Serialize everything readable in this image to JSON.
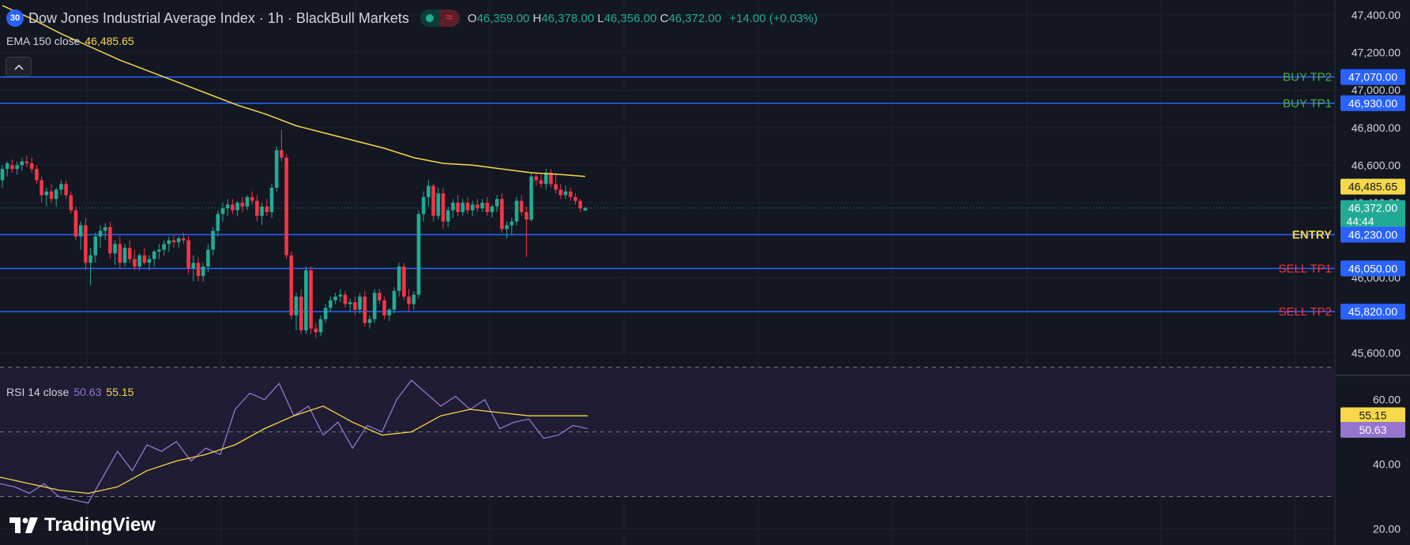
{
  "header": {
    "badge": "30",
    "title": "Dow Jones Industrial Average Index · 1h · BlackBull Markets",
    "status_wave_icon": "≈",
    "ohlc": [
      {
        "label": "O",
        "value": "46,359.00"
      },
      {
        "label": "H",
        "value": "46,378.00"
      },
      {
        "label": "L",
        "value": "46,356.00"
      },
      {
        "label": "C",
        "value": "46,372.00"
      }
    ],
    "change": "+14.00 (+0.03%)"
  },
  "ema_legend": {
    "name": "EMA 150 close",
    "value": "46,485.65"
  },
  "collapse_icon": "chevron-up-icon",
  "rsi_legend": {
    "name": "RSI 14 close",
    "value1": "50.63",
    "value2": "55.15"
  },
  "logo": {
    "text": "TradingView"
  },
  "colors": {
    "background": "#131722",
    "grid": "#1e222d",
    "up": "#22ab94",
    "down": "#f23645",
    "ema": "#f7d84b",
    "level_line": "#2962ff",
    "buy": "#4caf50",
    "sell": "#f23645",
    "entry": "#f7d84b",
    "rsi": "#9575cd",
    "rsi_ma": "#f7d84b",
    "rsi_band": "#1f1c33"
  },
  "chart_data": [
    {
      "type": "candlestick",
      "interval": "1h",
      "ylim": [
        45480,
        47480
      ],
      "y_ticks": [
        {
          "value": 47400,
          "label": "47,400.00"
        },
        {
          "value": 47200,
          "label": "47,200.00"
        },
        {
          "value": 47000,
          "label": "47,000.00"
        },
        {
          "value": 46800,
          "label": "46,800.00"
        },
        {
          "value": 46600,
          "label": "46,600.00"
        },
        {
          "value": 46400,
          "label": "46,400.00"
        },
        {
          "value": 46000,
          "label": "46,000.00"
        },
        {
          "value": 45600,
          "label": "45,600.00"
        }
      ],
      "levels": [
        {
          "name": "BUY TP2",
          "value": 47070,
          "price_label": "47,070.00",
          "kind": "buy"
        },
        {
          "name": "BUY TP1",
          "value": 46930,
          "price_label": "46,930.00",
          "kind": "buy"
        },
        {
          "name": "ENTRY",
          "value": 46230,
          "price_label": "46,230.00",
          "kind": "entry"
        },
        {
          "name": "SELL TP1",
          "value": 46050,
          "price_label": "46,050.00",
          "kind": "sell"
        },
        {
          "name": "SELL TP2",
          "value": 45820,
          "price_label": "45,820.00",
          "kind": "sell"
        }
      ],
      "ema_tag": {
        "value": 46485.65,
        "label": "46,485.65"
      },
      "last_price": {
        "value": 46372,
        "label": "46,372.00",
        "countdown": "44:44"
      },
      "candles": [
        [
          46520,
          46600,
          46480,
          46580
        ],
        [
          46580,
          46620,
          46540,
          46610
        ],
        [
          46600,
          46630,
          46560,
          46580
        ],
        [
          46580,
          46620,
          46550,
          46600
        ],
        [
          46600,
          46640,
          46570,
          46620
        ],
        [
          46620,
          46650,
          46590,
          46610
        ],
        [
          46610,
          46640,
          46560,
          46580
        ],
        [
          46580,
          46600,
          46500,
          46520
        ],
        [
          46520,
          46540,
          46400,
          46440
        ],
        [
          46440,
          46480,
          46380,
          46460
        ],
        [
          46460,
          46500,
          46400,
          46420
        ],
        [
          46420,
          46480,
          46380,
          46470
        ],
        [
          46470,
          46520,
          46440,
          46500
        ],
        [
          46500,
          46520,
          46420,
          46440
        ],
        [
          46440,
          46460,
          46340,
          46360
        ],
        [
          46360,
          46380,
          46200,
          46220
        ],
        [
          46220,
          46300,
          46150,
          46280
        ],
        [
          46280,
          46320,
          46040,
          46080
        ],
        [
          46080,
          46160,
          45960,
          46120
        ],
        [
          46120,
          46240,
          46080,
          46220
        ],
        [
          46220,
          46280,
          46160,
          46250
        ],
        [
          46250,
          46290,
          46200,
          46270
        ],
        [
          46270,
          46300,
          46100,
          46130
        ],
        [
          46130,
          46200,
          46070,
          46180
        ],
        [
          46180,
          46220,
          46050,
          46080
        ],
        [
          46080,
          46180,
          46060,
          46160
        ],
        [
          46160,
          46200,
          46080,
          46100
        ],
        [
          46100,
          46150,
          46040,
          46060
        ],
        [
          46060,
          46130,
          46040,
          46120
        ],
        [
          46120,
          46160,
          46070,
          46080
        ],
        [
          46080,
          46120,
          46040,
          46100
        ],
        [
          46100,
          46150,
          46060,
          46140
        ],
        [
          46140,
          46180,
          46100,
          46150
        ],
        [
          46150,
          46200,
          46120,
          46180
        ],
        [
          46180,
          46220,
          46140,
          46200
        ],
        [
          46200,
          46230,
          46160,
          46190
        ],
        [
          46190,
          46220,
          46160,
          46210
        ],
        [
          46210,
          46240,
          46180,
          46200
        ],
        [
          46200,
          46220,
          46020,
          46050
        ],
        [
          46050,
          46120,
          45980,
          46080
        ],
        [
          46080,
          46110,
          45980,
          46010
        ],
        [
          46010,
          46080,
          45980,
          46060
        ],
        [
          46060,
          46180,
          46030,
          46150
        ],
        [
          46150,
          46270,
          46120,
          46250
        ],
        [
          46250,
          46360,
          46220,
          46340
        ],
        [
          46340,
          46400,
          46300,
          46370
        ],
        [
          46370,
          46420,
          46330,
          46390
        ],
        [
          46390,
          46420,
          46340,
          46360
        ],
        [
          46360,
          46410,
          46330,
          46400
        ],
        [
          46400,
          46430,
          46350,
          46380
        ],
        [
          46380,
          46440,
          46360,
          46430
        ],
        [
          46430,
          46460,
          46390,
          46410
        ],
        [
          46410,
          46440,
          46300,
          46330
        ],
        [
          46330,
          46400,
          46280,
          46380
        ],
        [
          46380,
          46420,
          46330,
          46350
        ],
        [
          46350,
          46500,
          46320,
          46480
        ],
        [
          46480,
          46700,
          46460,
          46680
        ],
        [
          46680,
          46790,
          46620,
          46640
        ],
        [
          46640,
          46660,
          46100,
          46120
        ],
        [
          46120,
          46140,
          45780,
          45800
        ],
        [
          45800,
          45920,
          45720,
          45900
        ],
        [
          45900,
          45940,
          45700,
          45720
        ],
        [
          45720,
          46060,
          45700,
          46040
        ],
        [
          46040,
          46060,
          45700,
          45730
        ],
        [
          45730,
          45760,
          45680,
          45710
        ],
        [
          45710,
          45800,
          45690,
          45780
        ],
        [
          45780,
          45860,
          45760,
          45840
        ],
        [
          45840,
          45900,
          45820,
          45880
        ],
        [
          45880,
          45920,
          45860,
          45900
        ],
        [
          45900,
          45940,
          45870,
          45910
        ],
        [
          45910,
          45930,
          45840,
          45860
        ],
        [
          45860,
          45890,
          45820,
          45870
        ],
        [
          45870,
          45900,
          45800,
          45830
        ],
        [
          45830,
          45920,
          45810,
          45900
        ],
        [
          45900,
          45930,
          45740,
          45760
        ],
        [
          45760,
          45800,
          45730,
          45780
        ],
        [
          45780,
          45940,
          45760,
          45920
        ],
        [
          45920,
          45940,
          45860,
          45880
        ],
        [
          45880,
          45900,
          45780,
          45800
        ],
        [
          45800,
          45840,
          45770,
          45830
        ],
        [
          45830,
          45950,
          45810,
          45930
        ],
        [
          45930,
          46080,
          45900,
          46060
        ],
        [
          46060,
          46080,
          45880,
          45900
        ],
        [
          45900,
          45940,
          45820,
          45860
        ],
        [
          45860,
          45930,
          45830,
          45910
        ],
        [
          45910,
          46360,
          45890,
          46340
        ],
        [
          46340,
          46460,
          46300,
          46430
        ],
        [
          46430,
          46520,
          46380,
          46490
        ],
        [
          46490,
          46500,
          46300,
          46330
        ],
        [
          46330,
          46480,
          46310,
          46450
        ],
        [
          46450,
          46480,
          46260,
          46300
        ],
        [
          46300,
          46380,
          46270,
          46360
        ],
        [
          46360,
          46420,
          46320,
          46400
        ],
        [
          46400,
          46440,
          46330,
          46350
        ],
        [
          46350,
          46420,
          46330,
          46400
        ],
        [
          46400,
          46430,
          46340,
          46360
        ],
        [
          46360,
          46410,
          46330,
          46390
        ],
        [
          46390,
          46420,
          46350,
          46370
        ],
        [
          46370,
          46420,
          46350,
          46400
        ],
        [
          46400,
          46430,
          46330,
          46350
        ],
        [
          46350,
          46390,
          46320,
          46380
        ],
        [
          46380,
          46440,
          46350,
          46420
        ],
        [
          46420,
          46450,
          46240,
          46260
        ],
        [
          46260,
          46300,
          46210,
          46280
        ],
        [
          46280,
          46320,
          46230,
          46300
        ],
        [
          46300,
          46430,
          46280,
          46410
        ],
        [
          46410,
          46440,
          46330,
          46350
        ],
        [
          46350,
          46380,
          46110,
          46310
        ],
        [
          46310,
          46560,
          46300,
          46540
        ],
        [
          46540,
          46560,
          46490,
          46520
        ],
        [
          46520,
          46560,
          46480,
          46500
        ],
        [
          46500,
          46580,
          46470,
          46560
        ],
        [
          46560,
          46580,
          46480,
          46500
        ],
        [
          46500,
          46560,
          46450,
          46470
        ],
        [
          46470,
          46500,
          46420,
          46440
        ],
        [
          46440,
          46490,
          46420,
          46460
        ],
        [
          46460,
          46480,
          46410,
          46430
        ],
        [
          46430,
          46450,
          46390,
          46410
        ],
        [
          46410,
          46420,
          46350,
          46370
        ],
        [
          46359,
          46378,
          46356,
          46372
        ]
      ],
      "ema_150": [
        [
          0,
          47450
        ],
        [
          6,
          47380
        ],
        [
          12,
          47300
        ],
        [
          18,
          47230
        ],
        [
          24,
          47160
        ],
        [
          30,
          47100
        ],
        [
          36,
          47040
        ],
        [
          42,
          46980
        ],
        [
          48,
          46920
        ],
        [
          54,
          46870
        ],
        [
          60,
          46810
        ],
        [
          66,
          46770
        ],
        [
          72,
          46730
        ],
        [
          78,
          46690
        ],
        [
          84,
          46640
        ],
        [
          90,
          46610
        ],
        [
          96,
          46600
        ],
        [
          102,
          46580
        ],
        [
          108,
          46560
        ],
        [
          114,
          46550
        ],
        [
          119,
          46540
        ]
      ]
    },
    {
      "type": "line",
      "name": "RSI 14 close",
      "ylim": [
        15,
        67
      ],
      "y_ticks": [
        {
          "value": 60,
          "label": "60.00"
        },
        {
          "value": 40,
          "label": "40.00"
        },
        {
          "value": 20,
          "label": "20.00"
        }
      ],
      "bands": {
        "upper": 70,
        "middle": 50,
        "lower": 30
      },
      "value_tags": [
        {
          "value": 55.15,
          "label": "55.15",
          "series": "rsi_ma"
        },
        {
          "value": 50.63,
          "label": "50.63",
          "series": "rsi"
        }
      ],
      "rsi": [
        [
          0,
          34
        ],
        [
          3,
          33
        ],
        [
          6,
          31
        ],
        [
          9,
          34
        ],
        [
          12,
          30
        ],
        [
          15,
          29
        ],
        [
          18,
          28
        ],
        [
          21,
          36
        ],
        [
          24,
          44
        ],
        [
          27,
          38
        ],
        [
          30,
          46
        ],
        [
          33,
          44
        ],
        [
          36,
          47
        ],
        [
          39,
          41
        ],
        [
          42,
          45
        ],
        [
          45,
          43
        ],
        [
          48,
          57
        ],
        [
          51,
          62
        ],
        [
          54,
          60
        ],
        [
          57,
          65
        ],
        [
          60,
          55
        ],
        [
          63,
          58
        ],
        [
          66,
          49
        ],
        [
          69,
          53
        ],
        [
          72,
          45
        ],
        [
          75,
          52
        ],
        [
          78,
          50
        ],
        [
          81,
          60
        ],
        [
          84,
          66
        ],
        [
          87,
          62
        ],
        [
          90,
          58
        ],
        [
          93,
          61
        ],
        [
          96,
          57
        ],
        [
          99,
          60
        ],
        [
          102,
          51
        ],
        [
          105,
          53
        ],
        [
          108,
          54
        ],
        [
          111,
          48
        ],
        [
          114,
          49
        ],
        [
          117,
          52
        ],
        [
          120,
          51
        ]
      ],
      "rsi_ma": [
        [
          0,
          36
        ],
        [
          6,
          34
        ],
        [
          12,
          32
        ],
        [
          18,
          31
        ],
        [
          24,
          33
        ],
        [
          30,
          38
        ],
        [
          36,
          41
        ],
        [
          42,
          43
        ],
        [
          48,
          46
        ],
        [
          54,
          51
        ],
        [
          60,
          55
        ],
        [
          66,
          58
        ],
        [
          72,
          53
        ],
        [
          78,
          49
        ],
        [
          84,
          50
        ],
        [
          90,
          55
        ],
        [
          96,
          57
        ],
        [
          102,
          56
        ],
        [
          108,
          55
        ],
        [
          114,
          55
        ],
        [
          120,
          55
        ]
      ]
    }
  ]
}
